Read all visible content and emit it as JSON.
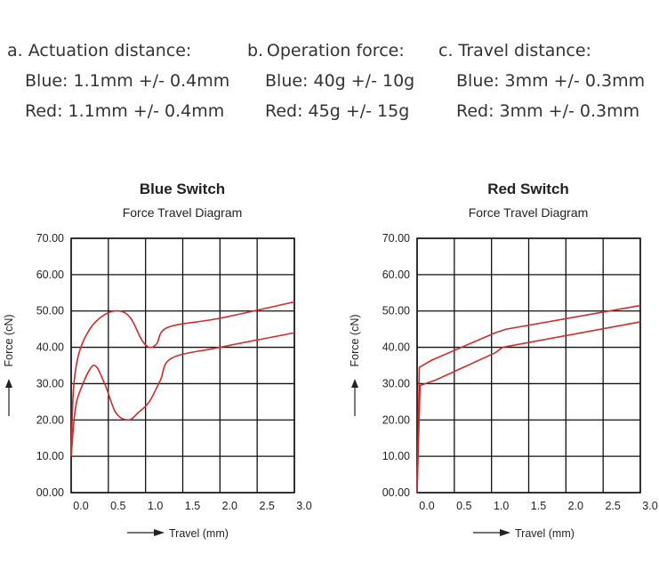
{
  "specs": [
    {
      "heading": "a. Actuation distance:",
      "blue": "Blue: 1.1mm +/- 0.4mm",
      "red": "Red: 1.1mm +/- 0.4mm"
    },
    {
      "heading": "b. Operation force:",
      "blue": "Blue: 40g +/- 10g",
      "red": "Red: 45g +/- 15g"
    },
    {
      "heading": "c. Travel distance:",
      "blue": "Blue: 3mm +/- 0.3mm",
      "red": "Red: 3mm +/- 0.3mm"
    }
  ],
  "colors": {
    "curve": "#d42a2a",
    "grid": "#111111"
  },
  "chart_data": [
    {
      "type": "line",
      "title": "Blue Switch",
      "subtitle": "Force Travel Diagram",
      "xlabel": "Travel (mm)",
      "ylabel": "Force (cN)",
      "xlim": [
        0,
        3.0
      ],
      "ylim": [
        0,
        70
      ],
      "x_ticks": [
        "0.0",
        "0.5",
        "1.0",
        "1.5",
        "2.0",
        "2.5",
        "3.0"
      ],
      "y_ticks": [
        "00.00",
        "10.00",
        "20.00",
        "30.00",
        "40.00",
        "50.00",
        "60.00",
        "70.00"
      ],
      "grid": true,
      "series": [
        {
          "values": [
            [
              0,
              10
            ],
            [
              0.03,
              28
            ],
            [
              0.1,
              38
            ],
            [
              0.25,
              45
            ],
            [
              0.45,
              49
            ],
            [
              0.65,
              50
            ],
            [
              0.8,
              48
            ],
            [
              0.95,
              42
            ],
            [
              1.05,
              40
            ],
            [
              1.15,
              41
            ],
            [
              1.3,
              45.5
            ],
            [
              2.0,
              48
            ],
            [
              3.0,
              52.5
            ]
          ]
        },
        {
          "values": [
            [
              0,
              10
            ],
            [
              0.05,
              22
            ],
            [
              0.12,
              28
            ],
            [
              0.3,
              35
            ],
            [
              0.45,
              30
            ],
            [
              0.6,
              22
            ],
            [
              0.77,
              20
            ],
            [
              0.9,
              22
            ],
            [
              1.05,
              25
            ],
            [
              1.2,
              31
            ],
            [
              1.35,
              37
            ],
            [
              2.0,
              40
            ],
            [
              3.0,
              44
            ]
          ]
        }
      ]
    },
    {
      "type": "line",
      "title": "Red Switch",
      "subtitle": "Force Travel Diagram",
      "xlabel": "Travel (mm)",
      "ylabel": "Force (cN)",
      "xlim": [
        0,
        3.0
      ],
      "ylim": [
        0,
        70
      ],
      "x_ticks": [
        "0.0",
        "0.5",
        "1.0",
        "1.5",
        "2.0",
        "2.5",
        "3.0"
      ],
      "y_ticks": [
        "00.00",
        "10.00",
        "20.00",
        "30.00",
        "40.00",
        "50.00",
        "60.00",
        "70.00"
      ],
      "grid": true,
      "series": [
        {
          "values": [
            [
              0,
              0
            ],
            [
              0.03,
              34.5
            ],
            [
              0.2,
              36.5
            ],
            [
              1.05,
              44
            ],
            [
              1.2,
              45
            ],
            [
              3.0,
              51.5
            ]
          ]
        },
        {
          "values": [
            [
              0,
              0
            ],
            [
              0.04,
              29.5
            ],
            [
              0.25,
              31
            ],
            [
              1.05,
              38.5
            ],
            [
              1.15,
              40
            ],
            [
              3.0,
              47
            ]
          ]
        }
      ]
    }
  ]
}
